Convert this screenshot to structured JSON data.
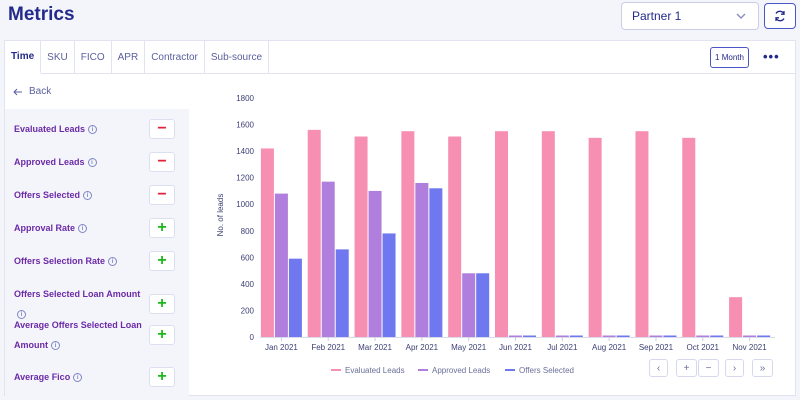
{
  "header": {
    "title": "Metrics",
    "partner_value": "Partner 1"
  },
  "tabs": [
    {
      "label": "Time"
    },
    {
      "label": "SKU"
    },
    {
      "label": "FICO"
    },
    {
      "label": "APR"
    },
    {
      "label": "Contractor"
    },
    {
      "label": "Sub-source"
    }
  ],
  "toolbar": {
    "period_label": "1 Month",
    "more_label": "•••"
  },
  "back_label": "Back",
  "metrics": [
    {
      "label": "Evaluated Leads",
      "state": "−"
    },
    {
      "label": "Approved Leads",
      "state": "−"
    },
    {
      "label": "Offers Selected",
      "state": "−"
    },
    {
      "label": "Approval Rate",
      "state": "+"
    },
    {
      "label": "Offers Selection Rate",
      "state": "+"
    },
    {
      "label": "Offers Selected Loan Amount",
      "state": "+"
    },
    {
      "label": "Average Offers Selected Loan Amount",
      "state": "+"
    },
    {
      "label": "Average Fico",
      "state": "+"
    }
  ],
  "pager": {
    "prev": "‹",
    "zoom_in": "+",
    "zoom_out": "−",
    "next": "›",
    "last": "»"
  },
  "chart_data": {
    "type": "bar",
    "ylabel": "No. of leads",
    "ylim": [
      0,
      1800
    ],
    "yticks": [
      0,
      200,
      400,
      600,
      800,
      1000,
      1200,
      1400,
      1600,
      1800
    ],
    "categories": [
      "Jan 2021",
      "Feb 2021",
      "Mar 2021",
      "Apr 2021",
      "May 2021",
      "Jun 2021",
      "Jul 2021",
      "Aug 2021",
      "Sep 2021",
      "Oct 2021",
      "Nov 2021"
    ],
    "series": [
      {
        "name": "Evaluated Leads",
        "color": "#f78fb3",
        "values": [
          1420,
          1560,
          1510,
          1550,
          1510,
          1550,
          1550,
          1500,
          1550,
          1500,
          300
        ]
      },
      {
        "name": "Approved Leads",
        "color": "#b07fdd",
        "values": [
          1080,
          1170,
          1100,
          1160,
          480,
          0,
          0,
          0,
          0,
          0,
          0
        ]
      },
      {
        "name": "Offers Selected",
        "color": "#6f78ef",
        "values": [
          590,
          660,
          780,
          1120,
          480,
          0,
          0,
          0,
          0,
          0,
          0
        ]
      }
    ]
  }
}
